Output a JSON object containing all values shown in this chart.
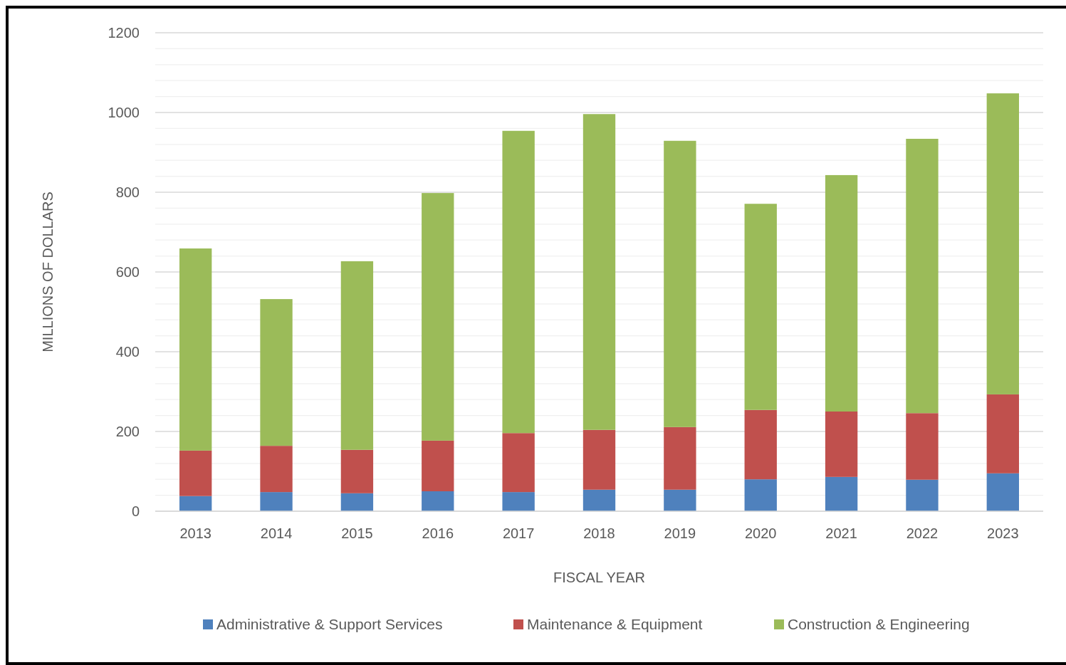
{
  "chart_data": {
    "type": "bar",
    "stacked": true,
    "xlabel": "FISCAL YEAR",
    "ylabel": "MILLIONS OF DOLLARS",
    "categories": [
      "2013",
      "2014",
      "2015",
      "2016",
      "2017",
      "2018",
      "2019",
      "2020",
      "2021",
      "2022",
      "2023"
    ],
    "series": [
      {
        "name": "Administrative & Support Services",
        "color": "#4f81bd",
        "values": [
          38,
          48,
          45,
          50,
          48,
          54,
          54,
          80,
          86,
          79,
          95
        ]
      },
      {
        "name": "Maintenance & Equipment",
        "color": "#c0504d",
        "values": [
          114,
          116,
          109,
          127,
          148,
          150,
          157,
          174,
          164,
          167,
          198
        ]
      },
      {
        "name": "Construction & Engineering",
        "color": "#9bbb59",
        "values": [
          507,
          368,
          473,
          621,
          758,
          792,
          718,
          517,
          593,
          688,
          755
        ]
      }
    ],
    "ylim": [
      0,
      1200
    ],
    "yticks": [
      0,
      {
        "value": 40,
        "label": null
      },
      {
        "value": 80,
        "label": null
      },
      {
        "value": 120,
        "label": null
      },
      {
        "value": 160,
        "label": null
      },
      200,
      {
        "value": 240,
        "label": null
      },
      {
        "value": 280,
        "label": null
      },
      {
        "value": 320,
        "label": null
      },
      {
        "value": 360,
        "label": null
      },
      400,
      {
        "value": 440,
        "label": null
      },
      {
        "value": 480,
        "label": null
      },
      {
        "value": 520,
        "label": null
      },
      {
        "value": 560,
        "label": null
      },
      600,
      {
        "value": 640,
        "label": null
      },
      {
        "value": 680,
        "label": null
      },
      {
        "value": 720,
        "label": null
      },
      {
        "value": 760,
        "label": null
      },
      800,
      {
        "value": 840,
        "label": null
      },
      {
        "value": 880,
        "label": null
      },
      {
        "value": 920,
        "label": null
      },
      {
        "value": 960,
        "label": null
      },
      1000,
      {
        "value": 1040,
        "label": null
      },
      {
        "value": 1080,
        "label": null
      },
      {
        "value": 1120,
        "label": null
      },
      {
        "value": 1160,
        "label": null
      },
      1200
    ],
    "grid": "y",
    "legend": "bottom"
  }
}
